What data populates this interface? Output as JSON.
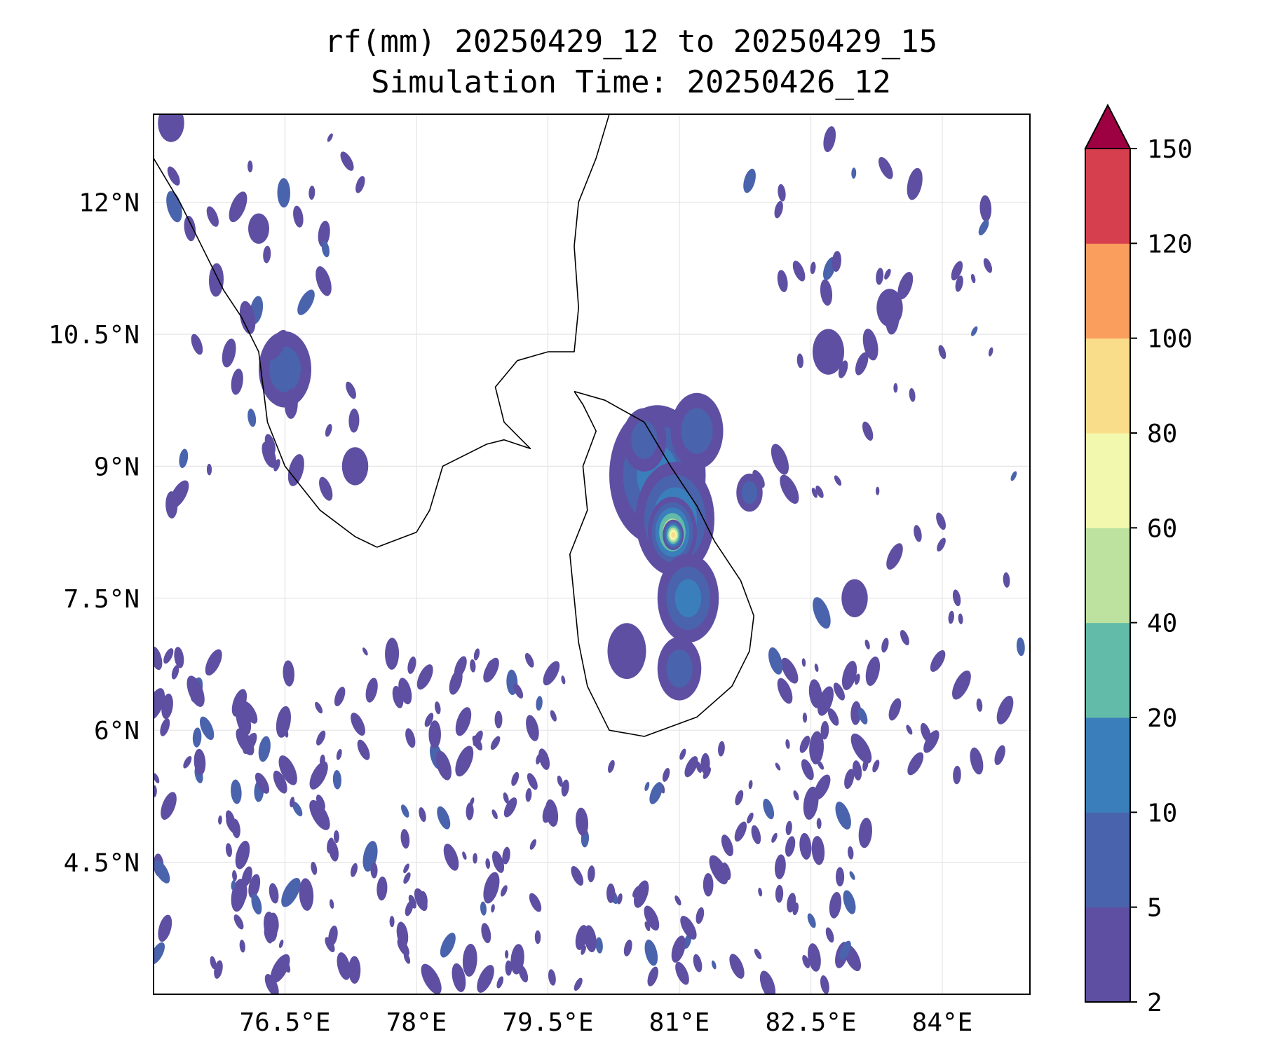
{
  "title": {
    "line1": "rf(mm) 20250429_12 to 20250429_15",
    "line2": "Simulation Time: 20250426_12"
  },
  "map": {
    "lon_range": [
      75.0,
      85.0
    ],
    "lat_range": [
      3.0,
      13.0
    ],
    "gridlines": true,
    "coastline_color": "#000000",
    "lon_ticks": [
      {
        "value": 76.5,
        "label": "76.5°E"
      },
      {
        "value": 78.0,
        "label": "78°E"
      },
      {
        "value": 79.5,
        "label": "79.5°E"
      },
      {
        "value": 81.0,
        "label": "81°E"
      },
      {
        "value": 82.5,
        "label": "82.5°E"
      },
      {
        "value": 84.0,
        "label": "84°E"
      }
    ],
    "lat_ticks": [
      {
        "value": 12.0,
        "label": "12°N"
      },
      {
        "value": 10.5,
        "label": "10.5°N"
      },
      {
        "value": 9.0,
        "label": "9°N"
      },
      {
        "value": 7.5,
        "label": "7.5°N"
      },
      {
        "value": 6.0,
        "label": "6°N"
      },
      {
        "value": 4.5,
        "label": "4.5°N"
      }
    ],
    "coastlines": {
      "india_west": [
        [
          75.0,
          12.5
        ],
        [
          75.3,
          12.0
        ],
        [
          75.5,
          11.6
        ],
        [
          75.8,
          11.0
        ],
        [
          76.0,
          10.7
        ],
        [
          76.2,
          10.3
        ],
        [
          76.25,
          9.9
        ],
        [
          76.3,
          9.5
        ],
        [
          76.5,
          9.0
        ],
        [
          76.9,
          8.5
        ],
        [
          77.3,
          8.2
        ],
        [
          77.55,
          8.08
        ]
      ],
      "india_east": [
        [
          77.55,
          8.08
        ],
        [
          78.0,
          8.25
        ],
        [
          78.15,
          8.5
        ],
        [
          78.3,
          9.0
        ],
        [
          78.8,
          9.25
        ],
        [
          79.0,
          9.3
        ],
        [
          79.3,
          9.2
        ],
        [
          79.0,
          9.5
        ],
        [
          78.9,
          9.9
        ],
        [
          79.15,
          10.2
        ],
        [
          79.5,
          10.3
        ],
        [
          79.8,
          10.3
        ],
        [
          79.85,
          10.8
        ],
        [
          79.8,
          11.5
        ],
        [
          79.85,
          12.0
        ],
        [
          80.05,
          12.5
        ],
        [
          80.2,
          13.0
        ]
      ],
      "sri_lanka": [
        [
          79.8,
          9.85
        ],
        [
          80.15,
          9.75
        ],
        [
          80.6,
          9.5
        ],
        [
          80.9,
          9.0
        ],
        [
          81.2,
          8.55
        ],
        [
          81.4,
          8.15
        ],
        [
          81.7,
          7.7
        ],
        [
          81.85,
          7.3
        ],
        [
          81.8,
          6.9
        ],
        [
          81.6,
          6.5
        ],
        [
          81.2,
          6.15
        ],
        [
          80.6,
          5.93
        ],
        [
          80.2,
          6.0
        ],
        [
          79.95,
          6.5
        ],
        [
          79.85,
          7.0
        ],
        [
          79.8,
          7.5
        ],
        [
          79.75,
          8.0
        ],
        [
          79.95,
          8.5
        ],
        [
          79.9,
          9.0
        ],
        [
          80.05,
          9.4
        ],
        [
          79.9,
          9.7
        ],
        [
          79.8,
          9.85
        ]
      ]
    }
  },
  "chart_data": {
    "type": "filled-contour",
    "variable": "rf(mm)",
    "levels": [
      2,
      5,
      10,
      20,
      40,
      60,
      80,
      100,
      120,
      150
    ],
    "level_colors": [
      "#5e4fa2",
      "#4a63ad",
      "#3a7fbb",
      "#62bba9",
      "#bde2a0",
      "#f2f8ad",
      "#fadd8a",
      "#f99e5d",
      "#d63f4e"
    ],
    "extend_color": "#9e0142",
    "rain_cells": [
      {
        "lon": 80.75,
        "lat": 8.9,
        "r": 0.55,
        "mm": 15
      },
      {
        "lon": 80.95,
        "lat": 8.4,
        "r": 0.45,
        "mm": 30
      },
      {
        "lon": 80.92,
        "lat": 8.25,
        "r": 0.28,
        "mm": 65
      },
      {
        "lon": 80.93,
        "lat": 8.22,
        "r": 0.12,
        "mm": 90
      },
      {
        "lon": 81.2,
        "lat": 9.4,
        "r": 0.3,
        "mm": 8
      },
      {
        "lon": 80.6,
        "lat": 9.3,
        "r": 0.25,
        "mm": 6
      },
      {
        "lon": 81.1,
        "lat": 7.5,
        "r": 0.35,
        "mm": 10
      },
      {
        "lon": 81.8,
        "lat": 8.7,
        "r": 0.15,
        "mm": 6
      },
      {
        "lon": 81.0,
        "lat": 6.7,
        "r": 0.25,
        "mm": 5
      },
      {
        "lon": 80.4,
        "lat": 6.9,
        "r": 0.22,
        "mm": 4
      },
      {
        "lon": 76.5,
        "lat": 10.1,
        "r": 0.3,
        "mm": 8
      },
      {
        "lon": 77.3,
        "lat": 9.0,
        "r": 0.15,
        "mm": 4
      },
      {
        "lon": 75.2,
        "lat": 12.9,
        "r": 0.15,
        "mm": 4
      },
      {
        "lon": 76.2,
        "lat": 11.7,
        "r": 0.12,
        "mm": 4
      },
      {
        "lon": 82.7,
        "lat": 10.3,
        "r": 0.18,
        "mm": 4
      },
      {
        "lon": 83.4,
        "lat": 10.8,
        "r": 0.15,
        "mm": 4
      },
      {
        "lon": 83.0,
        "lat": 7.5,
        "r": 0.15,
        "mm": 4
      }
    ]
  },
  "colorbar": {
    "tick_labels": [
      "2",
      "5",
      "10",
      "20",
      "40",
      "60",
      "80",
      "100",
      "120",
      "150"
    ]
  }
}
